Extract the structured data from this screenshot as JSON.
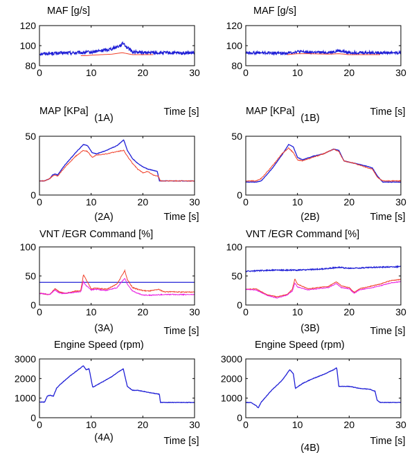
{
  "colors": {
    "measured": "#1f1fd6",
    "model": "#f0402a",
    "egr": "#e81ce0",
    "axis": "#000000"
  },
  "chart_data": [
    {
      "panel": "1A",
      "type": "line",
      "title": "MAF [g/s]",
      "caption": "(1A)",
      "xlabel": "Time [s]",
      "xlim": [
        0,
        30
      ],
      "ylim": [
        80,
        120
      ],
      "xticks": [
        0,
        10,
        20,
        30
      ],
      "yticks": [
        80,
        100,
        120
      ],
      "series": [
        {
          "color": "blue",
          "noise": 1.6,
          "x": [
            0,
            8,
            10,
            12,
            14,
            15.5,
            16.3,
            17,
            18,
            20,
            30
          ],
          "y": [
            92,
            93,
            93.5,
            95,
            97,
            100,
            102.5,
            98,
            94,
            93,
            92.5
          ]
        },
        {
          "color": "red",
          "noise": 0,
          "range": [
            8,
            22
          ],
          "x": [
            8,
            9,
            10,
            12,
            14,
            16,
            17,
            18,
            20,
            22
          ],
          "y": [
            90,
            90,
            90.5,
            91,
            91.5,
            93,
            92,
            91,
            91,
            91
          ]
        }
      ]
    },
    {
      "panel": "1B",
      "type": "line",
      "title": "MAF [g/s]",
      "caption": "(1B)",
      "xlabel": "Time [s]",
      "xlim": [
        0,
        30
      ],
      "ylim": [
        80,
        120
      ],
      "xticks": [
        0,
        10,
        20,
        30
      ],
      "yticks": [
        80,
        100,
        120
      ],
      "series": [
        {
          "color": "blue",
          "noise": 1.4,
          "x": [
            0,
            8,
            10,
            12,
            16,
            18,
            20,
            30
          ],
          "y": [
            93,
            92.5,
            94,
            93.5,
            93,
            95,
            93,
            93
          ]
        },
        {
          "color": "red",
          "noise": 0,
          "range": [
            8,
            26
          ],
          "x": [
            8,
            10,
            12,
            16,
            18,
            20,
            24,
            26
          ],
          "y": [
            91,
            92,
            92,
            91.5,
            92,
            91,
            91,
            91
          ]
        }
      ]
    },
    {
      "panel": "2A",
      "type": "line",
      "title": "MAP [KPa]",
      "caption": "(2A)",
      "xlabel": "Time [s]",
      "xlim": [
        0,
        30
      ],
      "ylim": [
        0,
        50
      ],
      "xticks": [
        0,
        10,
        20,
        30
      ],
      "yticks": [
        0,
        50
      ],
      "series": [
        {
          "color": "blue",
          "noise": 0.2,
          "x": [
            0,
            1,
            2,
            2.5,
            3,
            3.5,
            5,
            7,
            8.5,
            9.3,
            10.2,
            11,
            13,
            15,
            16.3,
            17,
            18,
            19,
            20,
            21,
            22,
            22.8,
            23.2,
            30
          ],
          "y": [
            12,
            12,
            14,
            17,
            18,
            17,
            26,
            36,
            43,
            42,
            36,
            35,
            38,
            42,
            47,
            38,
            31,
            27,
            24,
            22,
            21,
            20,
            12,
            12
          ]
        },
        {
          "color": "red",
          "noise": 0.3,
          "x": [
            0,
            1,
            2,
            2.5,
            3,
            3.5,
            5,
            7,
            8.5,
            9.3,
            10.2,
            11,
            13,
            15,
            16.3,
            17,
            18,
            19,
            20,
            21,
            22,
            23,
            23.4,
            30
          ],
          "y": [
            12,
            12,
            14,
            16,
            17,
            16,
            24,
            33,
            38,
            37,
            32,
            34,
            35,
            37,
            38,
            33,
            27,
            22,
            19,
            20,
            17,
            16,
            12,
            12
          ]
        }
      ]
    },
    {
      "panel": "2B",
      "type": "line",
      "title": "MAP [KPa]",
      "caption": "(2B)",
      "xlabel": "Time [s]",
      "xlim": [
        0,
        30
      ],
      "ylim": [
        0,
        50
      ],
      "xticks": [
        0,
        10,
        20,
        30
      ],
      "yticks": [
        0,
        50
      ],
      "series": [
        {
          "color": "blue",
          "noise": 0.2,
          "x": [
            0,
            2,
            3,
            5,
            7,
            8.3,
            9.2,
            10,
            11,
            13,
            15,
            17,
            18,
            19,
            21,
            23,
            24.5,
            25.5,
            26.5,
            30
          ],
          "y": [
            11,
            11,
            12,
            22,
            34,
            43,
            41,
            32,
            30,
            33,
            35,
            39,
            38,
            29,
            27,
            25,
            23,
            16,
            11,
            11
          ]
        },
        {
          "color": "red",
          "noise": 0.35,
          "x": [
            0,
            2,
            3,
            5,
            7,
            8.3,
            9.2,
            10,
            11,
            13,
            15,
            17,
            18,
            19,
            21,
            23,
            24.5,
            25.5,
            26.5,
            30
          ],
          "y": [
            12,
            12,
            14,
            24,
            35,
            40,
            36,
            30,
            29,
            32,
            35,
            39,
            37,
            29,
            27,
            24,
            22,
            15,
            12,
            12
          ]
        }
      ]
    },
    {
      "panel": "3A",
      "type": "line",
      "title": "VNT /EGR Command [%]",
      "caption": "(3A)",
      "xlabel": "Time [s]",
      "xlim": [
        0,
        30
      ],
      "ylim": [
        0,
        100
      ],
      "xticks": [
        0,
        10,
        20,
        30
      ],
      "yticks": [
        0,
        50,
        100
      ],
      "series": [
        {
          "color": "blue",
          "noise": 0,
          "x": [
            0,
            30
          ],
          "y": [
            39,
            39
          ]
        },
        {
          "color": "red",
          "noise": 0.8,
          "x": [
            0,
            2,
            3,
            4,
            5,
            7,
            8,
            8.5,
            9,
            10,
            11,
            13,
            15,
            16.5,
            17,
            18,
            19,
            20,
            21,
            22,
            23,
            24,
            30
          ],
          "y": [
            20,
            18,
            28,
            22,
            20,
            24,
            25,
            52,
            44,
            28,
            29,
            27,
            36,
            59,
            44,
            30,
            27,
            25,
            24,
            25,
            27,
            23,
            22
          ]
        },
        {
          "color": "magenta",
          "noise": 0.8,
          "x": [
            0,
            2,
            3,
            4,
            5,
            7,
            8,
            8.5,
            9,
            10,
            11,
            13,
            15,
            16.5,
            17,
            18,
            19,
            20,
            22,
            24,
            30
          ],
          "y": [
            20,
            18,
            26,
            20,
            20,
            22,
            23,
            40,
            34,
            26,
            27,
            25,
            30,
            46,
            36,
            24,
            20,
            17,
            17,
            18,
            18
          ]
        }
      ]
    },
    {
      "panel": "3B",
      "type": "line",
      "title": "VNT /EGR Command [%]",
      "caption": "(3B)",
      "xlabel": "Time [s]",
      "xlim": [
        0,
        30
      ],
      "ylim": [
        0,
        100
      ],
      "xticks": [
        0,
        10,
        20,
        30
      ],
      "yticks": [
        0,
        50,
        100
      ],
      "series": [
        {
          "color": "blue",
          "noise": 0.9,
          "x": [
            0,
            5,
            10,
            15,
            18,
            20,
            25,
            30
          ],
          "y": [
            58,
            60,
            60,
            62,
            65,
            63,
            65,
            66
          ]
        },
        {
          "color": "red",
          "noise": 0.6,
          "x": [
            0,
            2,
            4,
            6,
            8,
            9,
            9.5,
            10,
            12,
            14,
            16,
            17.5,
            18.5,
            20,
            21,
            22,
            24,
            26,
            28,
            30
          ],
          "y": [
            27,
            28,
            18,
            14,
            18,
            27,
            45,
            36,
            28,
            30,
            32,
            40,
            33,
            30,
            22,
            28,
            32,
            36,
            42,
            44
          ]
        },
        {
          "color": "magenta",
          "noise": 0.6,
          "x": [
            0,
            2,
            4,
            6,
            8,
            9,
            9.5,
            10,
            12,
            14,
            16,
            17.5,
            18.5,
            20,
            21,
            22,
            24,
            26,
            28,
            30
          ],
          "y": [
            27,
            26,
            17,
            12,
            17,
            24,
            38,
            31,
            26,
            28,
            30,
            37,
            30,
            28,
            20,
            26,
            29,
            33,
            38,
            40
          ]
        }
      ]
    },
    {
      "panel": "4A",
      "type": "line",
      "title": "Engine Speed (rpm)",
      "caption": "(4A)",
      "xlabel": "Time [s]",
      "xlim": [
        0,
        30
      ],
      "ylim": [
        0,
        3000
      ],
      "xticks": [
        0,
        10,
        20,
        30
      ],
      "yticks": [
        0,
        1000,
        2000,
        3000
      ],
      "series": [
        {
          "color": "blue",
          "noise": 12,
          "x": [
            0,
            1,
            1.5,
            2,
            2.7,
            3.3,
            4,
            6,
            8.5,
            9,
            9.6,
            10.3,
            12,
            14,
            16.2,
            17,
            18,
            19,
            20,
            22,
            23.2,
            23.4,
            30
          ],
          "y": [
            800,
            800,
            1100,
            1150,
            1100,
            1500,
            1700,
            2150,
            2650,
            2450,
            2500,
            1550,
            1800,
            2100,
            2500,
            1600,
            1400,
            1400,
            1350,
            1250,
            1200,
            780,
            780
          ]
        }
      ]
    },
    {
      "panel": "4B",
      "type": "line",
      "title": "Engine Speed (rpm)",
      "caption": "(4B)",
      "xlabel": "Time [s]",
      "xlim": [
        0,
        30
      ],
      "ylim": [
        0,
        3000
      ],
      "xticks": [
        0,
        10,
        20,
        30
      ],
      "yticks": [
        0,
        1000,
        2000,
        3000
      ],
      "series": [
        {
          "color": "blue",
          "noise": 12,
          "x": [
            0,
            1,
            2,
            2.4,
            3,
            5,
            7,
            8.5,
            9.2,
            9.6,
            11,
            13,
            15,
            17,
            17.6,
            18,
            20,
            22,
            24,
            25,
            25.4,
            26,
            30
          ],
          "y": [
            780,
            780,
            620,
            500,
            800,
            1400,
            1900,
            2450,
            2250,
            1500,
            1750,
            2000,
            2200,
            2450,
            2550,
            1600,
            1600,
            1500,
            1450,
            1350,
            900,
            780,
            780
          ]
        }
      ]
    }
  ]
}
